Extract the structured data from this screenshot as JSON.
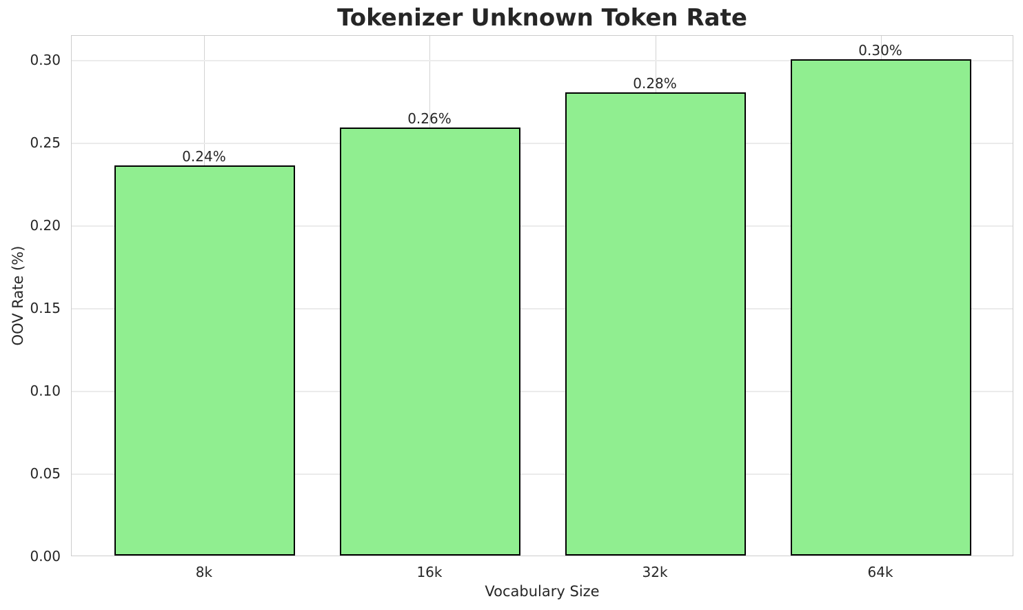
{
  "chart_data": {
    "type": "bar",
    "title": "Tokenizer Unknown Token Rate",
    "xlabel": "Vocabulary Size",
    "ylabel": "OOV Rate (%)",
    "categories": [
      "8k",
      "16k",
      "32k",
      "64k"
    ],
    "values": [
      0.236,
      0.259,
      0.28,
      0.3
    ],
    "bar_labels": [
      "0.24%",
      "0.26%",
      "0.28%",
      "0.30%"
    ],
    "ylim": [
      0,
      0.3151
    ],
    "xlim_units": [
      -0.59,
      3.59
    ],
    "bar_width_units": 0.8,
    "yticks": [
      0,
      0.05,
      0.1,
      0.15,
      0.2,
      0.25,
      0.3
    ],
    "ytick_labels": [
      "0.00",
      "0.05",
      "0.10",
      "0.15",
      "0.20",
      "0.25",
      "0.30"
    ],
    "grid": true,
    "legend": "none",
    "colors": {
      "bar_fill": "#90EE90",
      "bar_edge": "#000000",
      "grid_horizontal": "#ebebeb",
      "grid_vertical": "#d2d2d2",
      "spine": "#cccccc",
      "text": "#262626",
      "background": "#ffffff"
    }
  }
}
